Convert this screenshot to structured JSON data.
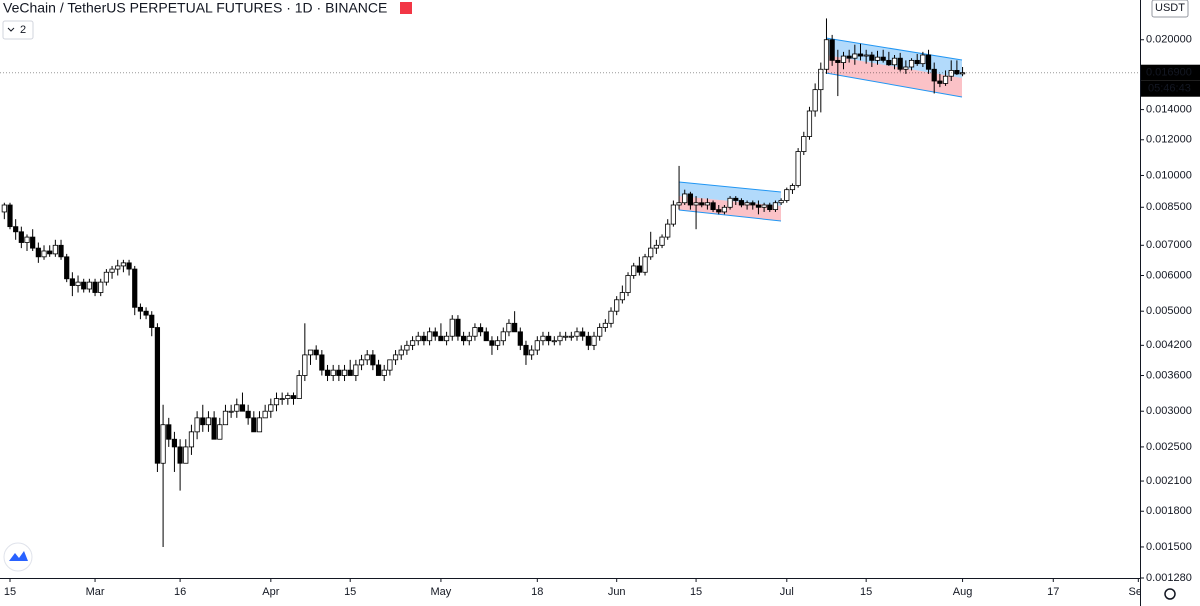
{
  "chart_data": {
    "type": "candlestick",
    "title": "VeChain / TetherUS PERPETUAL FUTURES · 1D · BINANCE",
    "indicator_count": "2",
    "currency": "USDT",
    "log_scale": true,
    "up_color": "#ffffff",
    "down_color": "#000000",
    "x": [
      "02-14",
      "02-15",
      "02-16",
      "02-17",
      "02-18",
      "02-19",
      "02-20",
      "02-21",
      "02-22",
      "02-23",
      "02-24",
      "02-25",
      "02-26",
      "02-27",
      "02-28",
      "02-29",
      "03-01",
      "03-02",
      "03-03",
      "03-04",
      "03-05",
      "03-06",
      "03-07",
      "03-08",
      "03-09",
      "03-10",
      "03-11",
      "03-12",
      "03-13",
      "03-14",
      "03-15",
      "03-16",
      "03-17",
      "03-18",
      "03-19",
      "03-20",
      "03-21",
      "03-22",
      "03-23",
      "03-24",
      "03-25",
      "03-26",
      "03-27",
      "03-28",
      "03-29",
      "03-30",
      "03-31",
      "04-01",
      "04-02",
      "04-03",
      "04-04",
      "04-05",
      "04-06",
      "04-07",
      "04-08",
      "04-09",
      "04-10",
      "04-11",
      "04-12",
      "04-13",
      "04-14",
      "04-15",
      "04-16",
      "04-17",
      "04-18",
      "04-19",
      "04-20",
      "04-21",
      "04-22",
      "04-23",
      "04-24",
      "04-25",
      "04-26",
      "04-27",
      "04-28",
      "04-29",
      "04-30",
      "05-01",
      "05-02",
      "05-03",
      "05-04",
      "05-05",
      "05-06",
      "05-07",
      "05-08",
      "05-09",
      "05-10",
      "05-11",
      "05-12",
      "05-13",
      "05-14",
      "05-15",
      "05-16",
      "05-17",
      "05-18",
      "05-19",
      "05-20",
      "05-21",
      "05-22",
      "05-23",
      "05-24",
      "05-25",
      "05-26",
      "05-27",
      "05-28",
      "05-29",
      "05-30",
      "05-31",
      "06-01",
      "06-02",
      "06-03",
      "06-04",
      "06-05",
      "06-06",
      "06-07",
      "06-08",
      "06-09",
      "06-10",
      "06-11",
      "06-12",
      "06-13",
      "06-14",
      "06-15",
      "06-16",
      "06-17",
      "06-18",
      "06-19",
      "06-20",
      "06-21",
      "06-22",
      "06-23",
      "06-24",
      "06-25",
      "06-26",
      "06-27",
      "06-28",
      "06-29",
      "06-30",
      "07-01",
      "07-02",
      "07-03",
      "07-04",
      "07-05",
      "07-06",
      "07-07",
      "07-08",
      "07-09",
      "07-10",
      "07-11",
      "07-12",
      "07-13",
      "07-14",
      "07-15",
      "07-16",
      "07-17",
      "07-18",
      "07-19",
      "07-20",
      "07-21",
      "07-22",
      "07-23",
      "07-24",
      "07-25",
      "07-26",
      "07-27",
      "07-28",
      "07-29",
      "07-30",
      "07-31",
      "08-01"
    ],
    "open": [
      0.0083,
      0.0086,
      0.0077,
      0.0075,
      0.0071,
      0.0073,
      0.0069,
      0.0066,
      0.0068,
      0.0067,
      0.007,
      0.0066,
      0.0059,
      0.0057,
      0.0058,
      0.0056,
      0.0058,
      0.0055,
      0.0058,
      0.0061,
      0.0062,
      0.0063,
      0.0064,
      0.0062,
      0.0051,
      0.005,
      0.0049,
      0.0046,
      0.0023,
      0.0028,
      0.0026,
      0.0025,
      0.0023,
      0.0025,
      0.0027,
      0.0029,
      0.0028,
      0.0029,
      0.0026,
      0.0028,
      0.003,
      0.003,
      0.0031,
      0.003,
      0.0029,
      0.0027,
      0.0029,
      0.003,
      0.0031,
      0.0032,
      0.0032,
      0.00325,
      0.0032,
      0.0036,
      0.004,
      0.0041,
      0.004,
      0.0037,
      0.0036,
      0.0037,
      0.0036,
      0.0037,
      0.0036,
      0.0038,
      0.0039,
      0.004,
      0.0038,
      0.0036,
      0.0037,
      0.0039,
      0.004,
      0.0041,
      0.0042,
      0.0043,
      0.0044,
      0.0043,
      0.0045,
      0.0044,
      0.0043,
      0.0044,
      0.0048,
      0.0044,
      0.0043,
      0.0044,
      0.0046,
      0.0045,
      0.0043,
      0.0042,
      0.0043,
      0.0045,
      0.0047,
      0.0045,
      0.0042,
      0.004,
      0.0041,
      0.0043,
      0.0044,
      0.0043,
      0.0043,
      0.0044,
      0.0044,
      0.0044,
      0.0045,
      0.0044,
      0.0042,
      0.0044,
      0.0046,
      0.0047,
      0.005,
      0.0053,
      0.0055,
      0.006,
      0.0063,
      0.0061,
      0.0066,
      0.0069,
      0.007,
      0.0073,
      0.0078,
      0.0086,
      0.0087,
      0.0091,
      0.0086,
      0.0087,
      0.0086,
      0.0087,
      0.0084,
      0.0083,
      0.0085,
      0.0089,
      0.0088,
      0.0086,
      0.0087,
      0.0086,
      0.0085,
      0.0086,
      0.0084,
      0.0087,
      0.0088,
      0.0093,
      0.0095,
      0.0113,
      0.0122,
      0.0139,
      0.0155,
      0.0172,
      0.02,
      0.018,
      0.0178,
      0.0184,
      0.0182,
      0.0186,
      0.0184,
      0.0185,
      0.018,
      0.0183,
      0.018,
      0.0176,
      0.0182,
      0.0172,
      0.0174,
      0.018,
      0.0177,
      0.0185,
      0.0172,
      0.0162,
      0.016,
      0.0166,
      0.0171,
      0.0168
    ],
    "high": [
      0.0087,
      0.0087,
      0.008,
      0.0077,
      0.0074,
      0.0076,
      0.0071,
      0.007,
      0.007,
      0.0072,
      0.0072,
      0.0067,
      0.0061,
      0.006,
      0.0059,
      0.0059,
      0.0059,
      0.0059,
      0.0062,
      0.0063,
      0.0065,
      0.0065,
      0.0065,
      0.0063,
      0.0052,
      0.0051,
      0.005,
      0.0047,
      0.0031,
      0.0029,
      0.0027,
      0.0026,
      0.0026,
      0.0028,
      0.003,
      0.0031,
      0.003,
      0.003,
      0.0029,
      0.0031,
      0.0031,
      0.0032,
      0.0033,
      0.0031,
      0.003,
      0.003,
      0.0031,
      0.0032,
      0.0033,
      0.0033,
      0.0033,
      0.0033,
      0.0037,
      0.0047,
      0.0041,
      0.0042,
      0.0041,
      0.0038,
      0.0038,
      0.0038,
      0.0038,
      0.0039,
      0.0039,
      0.004,
      0.0041,
      0.0041,
      0.0039,
      0.0038,
      0.0039,
      0.0041,
      0.0042,
      0.0043,
      0.0044,
      0.0045,
      0.0045,
      0.0046,
      0.0046,
      0.0047,
      0.0045,
      0.0049,
      0.0049,
      0.0045,
      0.0045,
      0.0047,
      0.0047,
      0.0046,
      0.0044,
      0.0044,
      0.0046,
      0.0048,
      0.005,
      0.0046,
      0.0043,
      0.0042,
      0.0044,
      0.0045,
      0.0045,
      0.0044,
      0.0045,
      0.0045,
      0.0045,
      0.0046,
      0.0046,
      0.0045,
      0.0045,
      0.0047,
      0.0048,
      0.0051,
      0.0054,
      0.0057,
      0.0061,
      0.0064,
      0.0066,
      0.0067,
      0.0075,
      0.0072,
      0.0074,
      0.008,
      0.0088,
      0.0105,
      0.0093,
      0.0092,
      0.009,
      0.0089,
      0.0089,
      0.0088,
      0.0086,
      0.0086,
      0.009,
      0.009,
      0.0089,
      0.0088,
      0.0088,
      0.0088,
      0.0087,
      0.0087,
      0.0088,
      0.0089,
      0.0094,
      0.0096,
      0.0115,
      0.0125,
      0.0142,
      0.016,
      0.0178,
      0.0223,
      0.0205,
      0.019,
      0.0188,
      0.019,
      0.0195,
      0.0196,
      0.019,
      0.0188,
      0.0189,
      0.019,
      0.0188,
      0.0185,
      0.0187,
      0.018,
      0.0182,
      0.0186,
      0.0188,
      0.019,
      0.0178,
      0.0168,
      0.0171,
      0.018,
      0.018,
      0.0174
    ],
    "low": [
      0.008,
      0.0076,
      0.0072,
      0.0069,
      0.0068,
      0.0068,
      0.0064,
      0.0065,
      0.0066,
      0.0066,
      0.0065,
      0.0058,
      0.0054,
      0.0055,
      0.0055,
      0.0055,
      0.0054,
      0.0054,
      0.0057,
      0.0059,
      0.006,
      0.0061,
      0.006,
      0.0049,
      0.0048,
      0.0048,
      0.0044,
      0.0022,
      0.0015,
      0.0025,
      0.0022,
      0.002,
      0.0023,
      0.0024,
      0.0026,
      0.0027,
      0.0027,
      0.0026,
      0.0026,
      0.0028,
      0.0029,
      0.0029,
      0.003,
      0.0028,
      0.0027,
      0.0027,
      0.0029,
      0.0029,
      0.003,
      0.0031,
      0.0031,
      0.0031,
      0.0032,
      0.0035,
      0.0038,
      0.0039,
      0.0036,
      0.0035,
      0.0035,
      0.0035,
      0.0035,
      0.0036,
      0.0035,
      0.0037,
      0.0038,
      0.0037,
      0.0036,
      0.0035,
      0.0036,
      0.0038,
      0.0039,
      0.004,
      0.0041,
      0.0042,
      0.0042,
      0.0042,
      0.0043,
      0.0043,
      0.0042,
      0.0043,
      0.0043,
      0.0042,
      0.0042,
      0.0043,
      0.0044,
      0.0043,
      0.004,
      0.0041,
      0.0042,
      0.0044,
      0.0045,
      0.0041,
      0.0038,
      0.0039,
      0.004,
      0.0042,
      0.0042,
      0.0042,
      0.0042,
      0.0043,
      0.0043,
      0.0043,
      0.0043,
      0.0041,
      0.0041,
      0.0043,
      0.0045,
      0.0046,
      0.0049,
      0.0052,
      0.0054,
      0.0059,
      0.006,
      0.006,
      0.0065,
      0.0067,
      0.0069,
      0.0072,
      0.0077,
      0.0084,
      0.0086,
      0.0084,
      0.0076,
      0.0085,
      0.0084,
      0.0083,
      0.0082,
      0.0082,
      0.0084,
      0.0086,
      0.0085,
      0.0084,
      0.0084,
      0.0082,
      0.0083,
      0.0083,
      0.0083,
      0.0086,
      0.0087,
      0.0091,
      0.0094,
      0.0111,
      0.012,
      0.0135,
      0.0138,
      0.0168,
      0.0175,
      0.015,
      0.0172,
      0.0178,
      0.0176,
      0.018,
      0.0177,
      0.0174,
      0.0176,
      0.0178,
      0.0175,
      0.0172,
      0.017,
      0.0168,
      0.0171,
      0.0175,
      0.0174,
      0.0168,
      0.0152,
      0.0157,
      0.0158,
      0.0162,
      0.0167,
      0.0166
    ],
    "close": [
      0.0086,
      0.0077,
      0.0075,
      0.0071,
      0.0073,
      0.0069,
      0.0066,
      0.0068,
      0.0067,
      0.007,
      0.0066,
      0.0059,
      0.0057,
      0.0058,
      0.0056,
      0.0058,
      0.0055,
      0.0058,
      0.0061,
      0.0062,
      0.0063,
      0.0064,
      0.0062,
      0.0051,
      0.005,
      0.0049,
      0.0046,
      0.0023,
      0.0028,
      0.0026,
      0.0025,
      0.0023,
      0.0025,
      0.0027,
      0.0029,
      0.0028,
      0.0029,
      0.0026,
      0.0028,
      0.003,
      0.003,
      0.0031,
      0.003,
      0.0029,
      0.0027,
      0.0029,
      0.003,
      0.0031,
      0.0032,
      0.0032,
      0.00325,
      0.0032,
      0.0036,
      0.004,
      0.0041,
      0.004,
      0.0037,
      0.0036,
      0.0037,
      0.0036,
      0.0037,
      0.0036,
      0.0038,
      0.0039,
      0.004,
      0.0038,
      0.0036,
      0.0037,
      0.0039,
      0.004,
      0.0041,
      0.0042,
      0.0043,
      0.0044,
      0.0043,
      0.0045,
      0.0044,
      0.0043,
      0.0044,
      0.0048,
      0.0044,
      0.0043,
      0.0044,
      0.0046,
      0.0045,
      0.0043,
      0.0042,
      0.0043,
      0.0045,
      0.0047,
      0.0045,
      0.0042,
      0.004,
      0.0041,
      0.0043,
      0.0044,
      0.0043,
      0.0043,
      0.0044,
      0.0044,
      0.0044,
      0.0045,
      0.0044,
      0.0042,
      0.0044,
      0.0046,
      0.0047,
      0.005,
      0.0053,
      0.0055,
      0.006,
      0.0063,
      0.0061,
      0.0066,
      0.0069,
      0.007,
      0.0073,
      0.0078,
      0.0086,
      0.0087,
      0.0091,
      0.0086,
      0.0087,
      0.0086,
      0.0087,
      0.0084,
      0.0083,
      0.0085,
      0.0089,
      0.0088,
      0.0086,
      0.0087,
      0.0086,
      0.0085,
      0.0086,
      0.0084,
      0.0087,
      0.0088,
      0.0093,
      0.0095,
      0.0113,
      0.0122,
      0.0139,
      0.0155,
      0.0172,
      0.02,
      0.018,
      0.0178,
      0.0184,
      0.0182,
      0.0186,
      0.0184,
      0.0185,
      0.018,
      0.0183,
      0.018,
      0.0176,
      0.0182,
      0.0172,
      0.0174,
      0.018,
      0.0177,
      0.0185,
      0.0172,
      0.0162,
      0.016,
      0.0166,
      0.0171,
      0.0168,
      0.0169
    ],
    "ylim": [
      0.00128,
      0.0245
    ],
    "yticks": [
      {
        "value": 0.00128,
        "label": "0.001280"
      },
      {
        "value": 0.0015,
        "label": "0.001500"
      },
      {
        "value": 0.0018,
        "label": "0.001800"
      },
      {
        "value": 0.0021,
        "label": "0.002100"
      },
      {
        "value": 0.0025,
        "label": "0.002500"
      },
      {
        "value": 0.003,
        "label": "0.003000"
      },
      {
        "value": 0.0036,
        "label": "0.003600"
      },
      {
        "value": 0.0042,
        "label": "0.004200"
      },
      {
        "value": 0.005,
        "label": "0.005000"
      },
      {
        "value": 0.006,
        "label": "0.006000"
      },
      {
        "value": 0.007,
        "label": "0.007000"
      },
      {
        "value": 0.0085,
        "label": "0.008500"
      },
      {
        "value": 0.01,
        "label": "0.010000"
      },
      {
        "value": 0.012,
        "label": "0.012000"
      },
      {
        "value": 0.014,
        "label": "0.014000"
      },
      {
        "value": 0.02,
        "label": "0.020000"
      }
    ],
    "xticks": [
      {
        "value": "02-15",
        "label": "15"
      },
      {
        "value": "03-01",
        "label": "Mar"
      },
      {
        "value": "03-16",
        "label": "16"
      },
      {
        "value": "04-01",
        "label": "Apr"
      },
      {
        "value": "04-15",
        "label": "15"
      },
      {
        "value": "05-01",
        "label": "May"
      },
      {
        "value": "05-18",
        "label": "18"
      },
      {
        "value": "06-01",
        "label": "Jun"
      },
      {
        "value": "06-15",
        "label": "15"
      },
      {
        "value": "07-01",
        "label": "Jul"
      },
      {
        "value": "07-15",
        "label": "15"
      },
      {
        "value": "08-01",
        "label": "Aug"
      },
      {
        "value": "08-17",
        "label": "17"
      },
      {
        "value": "09-01",
        "label": "Sep"
      }
    ],
    "last_price": {
      "value": 0.0169,
      "label": "0.016900"
    },
    "countdown": "05:46:43"
  }
}
